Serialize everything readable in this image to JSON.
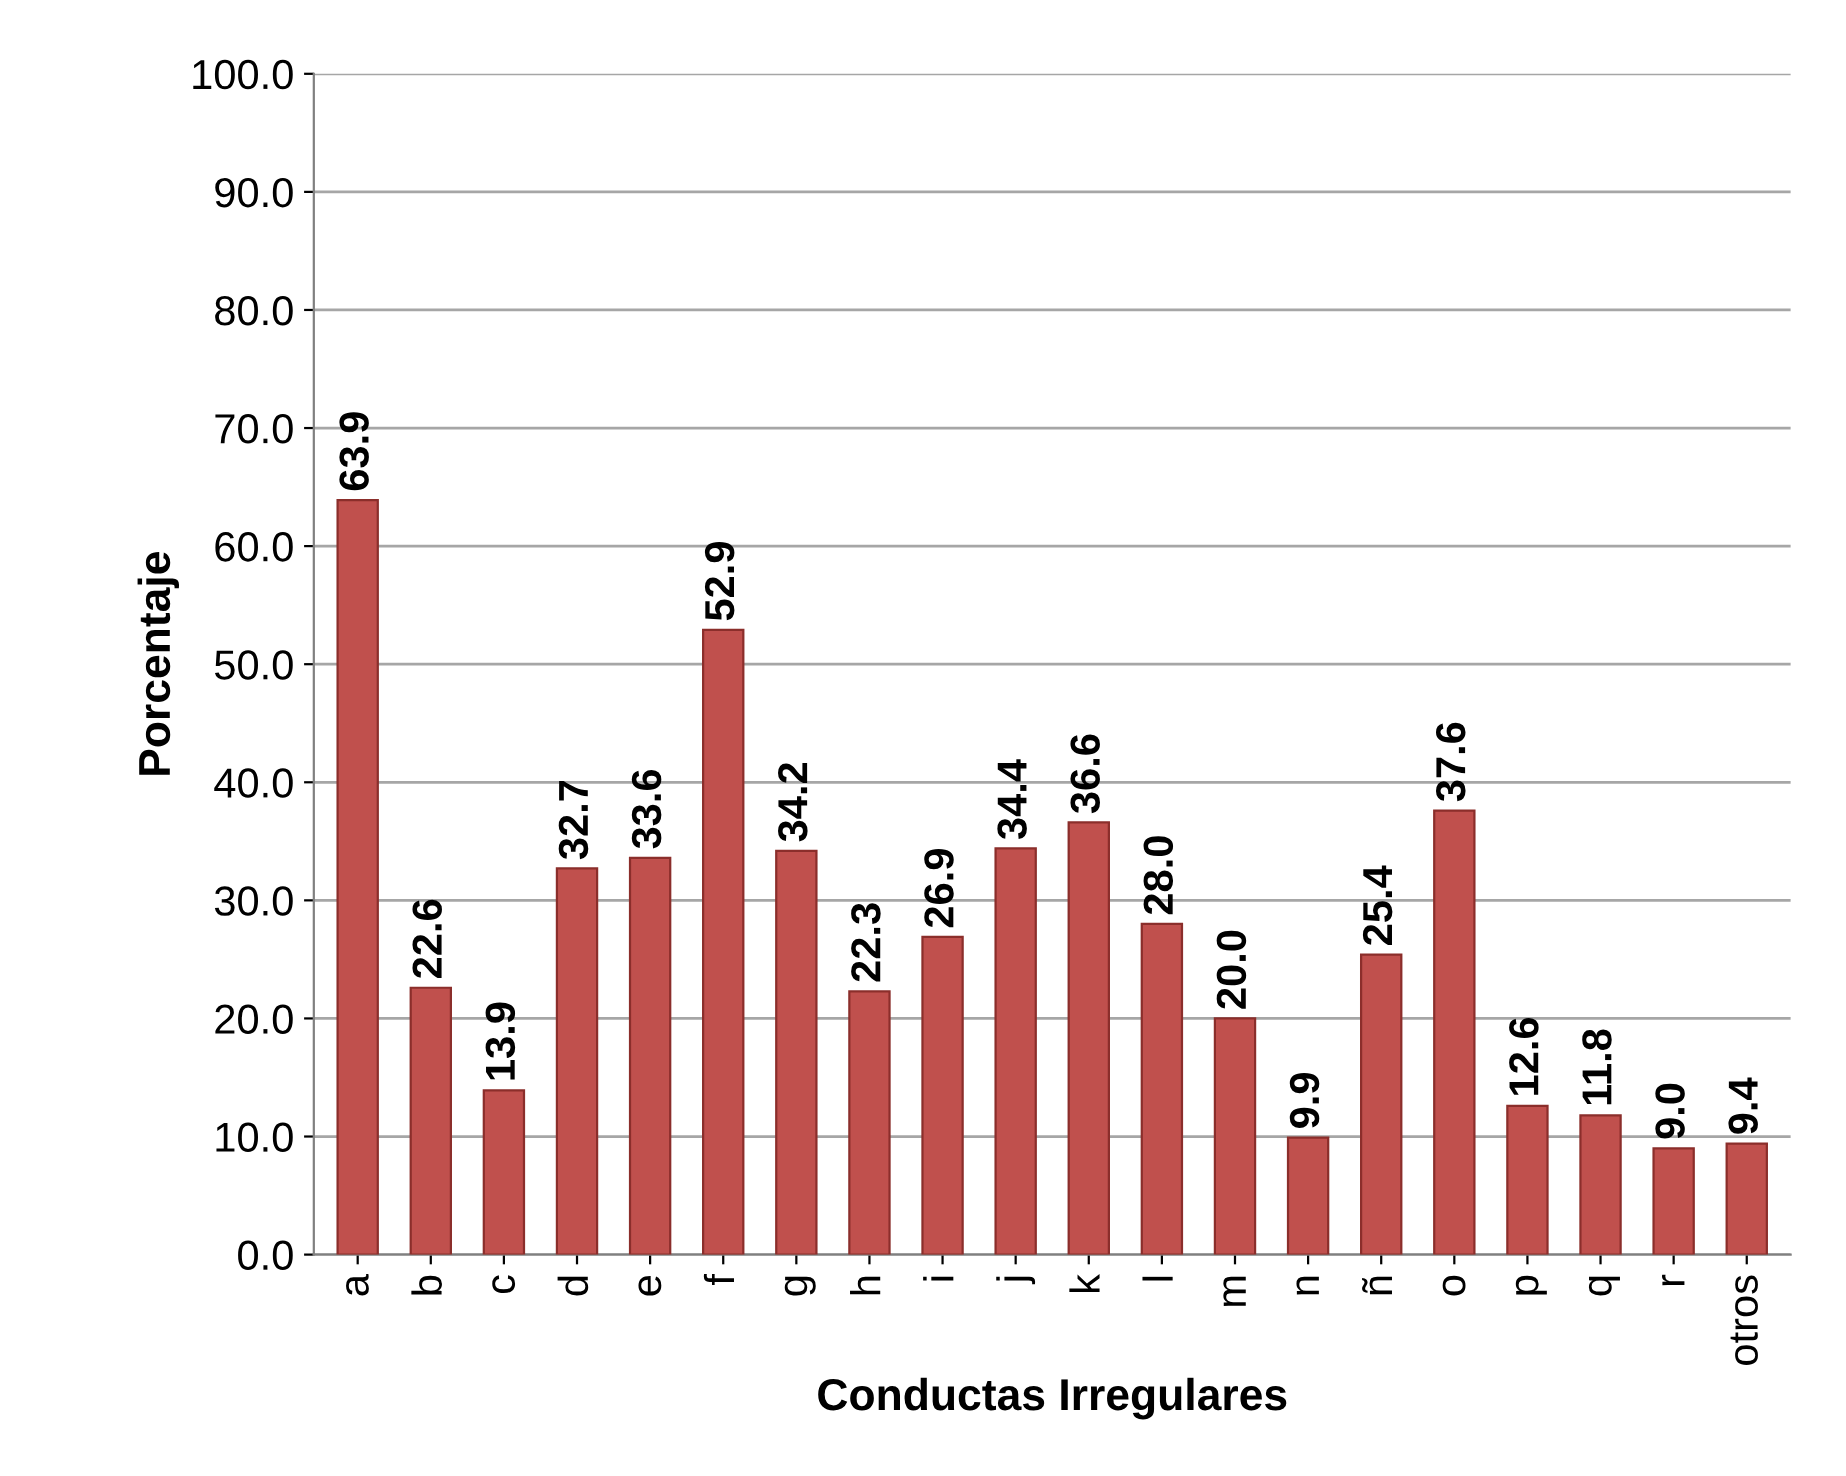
{
  "chart_data": {
    "type": "bar",
    "xlabel": "Conductas Irregulares",
    "ylabel": "Porcentaje",
    "categories": [
      "a",
      "b",
      "c",
      "d",
      "e",
      "f",
      "g",
      "h",
      "i",
      "j",
      "k",
      "l",
      "m",
      "n",
      "ñ",
      "o",
      "p",
      "q",
      "r",
      "otros"
    ],
    "values": [
      63.9,
      22.6,
      13.9,
      32.7,
      33.6,
      52.9,
      34.2,
      22.3,
      26.9,
      34.4,
      36.6,
      28.0,
      20.0,
      9.9,
      25.4,
      37.6,
      12.6,
      11.8,
      9.0,
      9.4
    ],
    "color": "#c0504d",
    "ylim": [
      0,
      100
    ],
    "yticks": [
      {
        "value": 0,
        "label": "0.0"
      },
      {
        "value": 10,
        "label": "10.0"
      },
      {
        "value": 20,
        "label": "20.0"
      },
      {
        "value": 30,
        "label": "30.0"
      },
      {
        "value": 40,
        "label": "40.0"
      },
      {
        "value": 50,
        "label": "50.0"
      },
      {
        "value": 60,
        "label": "60.0"
      },
      {
        "value": 70,
        "label": "70.0"
      },
      {
        "value": 80,
        "label": "80.0"
      },
      {
        "value": 90,
        "label": "90.0"
      },
      {
        "value": 100,
        "label": "100.0"
      }
    ],
    "grid": "y",
    "value_labels": [
      "63.9",
      "22.6",
      "13.9",
      "32.7",
      "33.6",
      "52.9",
      "34.2",
      "22.3",
      "26.9",
      "34.4",
      "36.6",
      "28.0",
      "20.0",
      "9.9",
      "25.4",
      "37.6",
      "12.6",
      "11.8",
      "9.0",
      "9.4"
    ]
  }
}
